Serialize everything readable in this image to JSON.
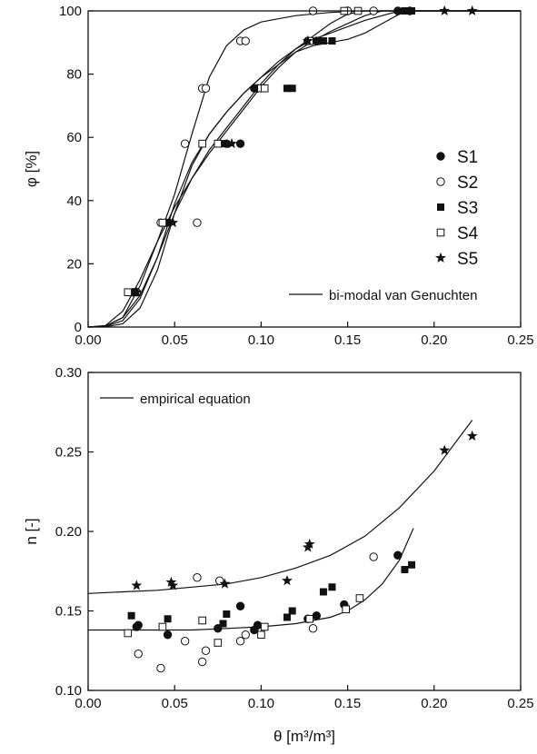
{
  "chart_data": [
    {
      "type": "scatter",
      "ylabel": "φ [%]",
      "xlim": [
        0,
        0.25
      ],
      "ylim": [
        0,
        100
      ],
      "xticks": [
        "0.00",
        "0.05",
        "0.10",
        "0.15",
        "0.20",
        "0.25"
      ],
      "yticks": [
        "0",
        "20",
        "40",
        "60",
        "80",
        "100"
      ],
      "legend_position": "right",
      "series": [
        {
          "name": "S1",
          "marker": "filled-circle",
          "points": [
            [
              0.026,
              11
            ],
            [
              0.045,
              33
            ],
            [
              0.08,
              58
            ],
            [
              0.088,
              58
            ],
            [
              0.096,
              75.5
            ],
            [
              0.098,
              75.5
            ],
            [
              0.127,
              90.5
            ],
            [
              0.132,
              90.5
            ],
            [
              0.15,
              100
            ],
            [
              0.179,
              100
            ],
            [
              0.186,
              100
            ]
          ]
        },
        {
          "name": "S2",
          "marker": "open-circle",
          "points": [
            [
              0.028,
              11
            ],
            [
              0.042,
              33
            ],
            [
              0.063,
              33
            ],
            [
              0.056,
              58
            ],
            [
              0.066,
              75.5
            ],
            [
              0.068,
              75.5
            ],
            [
              0.088,
              90.5
            ],
            [
              0.091,
              90.5
            ],
            [
              0.13,
              100
            ],
            [
              0.15,
              100
            ],
            [
              0.165,
              100
            ]
          ]
        },
        {
          "name": "S3",
          "marker": "filled-square",
          "points": [
            [
              0.027,
              11
            ],
            [
              0.046,
              33
            ],
            [
              0.079,
              58
            ],
            [
              0.115,
              75.5
            ],
            [
              0.118,
              75.5
            ],
            [
              0.136,
              90.5
            ],
            [
              0.141,
              90.5
            ],
            [
              0.148,
              100
            ],
            [
              0.183,
              100
            ],
            [
              0.187,
              100
            ]
          ]
        },
        {
          "name": "S4",
          "marker": "open-square",
          "points": [
            [
              0.023,
              11
            ],
            [
              0.043,
              33
            ],
            [
              0.066,
              58
            ],
            [
              0.075,
              58
            ],
            [
              0.1,
              75.5
            ],
            [
              0.102,
              75.5
            ],
            [
              0.128,
              90.5
            ],
            [
              0.148,
              100
            ],
            [
              0.156,
              100
            ]
          ]
        },
        {
          "name": "S5",
          "marker": "star",
          "points": [
            [
              0.028,
              11
            ],
            [
              0.049,
              33
            ],
            [
              0.083,
              58
            ],
            [
              0.127,
              90.5
            ],
            [
              0.206,
              100
            ],
            [
              0.222,
              100
            ]
          ]
        }
      ],
      "fit_legend": "bi-modal van Genuchten",
      "fit_curves": [
        {
          "points": [
            [
              0,
              0
            ],
            [
              0.01,
              0.3
            ],
            [
              0.02,
              3
            ],
            [
              0.03,
              13
            ],
            [
              0.04,
              27
            ],
            [
              0.05,
              42
            ],
            [
              0.06,
              61
            ],
            [
              0.07,
              79
            ],
            [
              0.08,
              89
            ],
            [
              0.09,
              94
            ],
            [
              0.1,
              96.5
            ],
            [
              0.12,
              98.5
            ],
            [
              0.14,
              99.5
            ],
            [
              0.16,
              100
            ],
            [
              0.25,
              100
            ]
          ]
        },
        {
          "points": [
            [
              0,
              0
            ],
            [
              0.01,
              0.2
            ],
            [
              0.02,
              2
            ],
            [
              0.03,
              9
            ],
            [
              0.04,
              22
            ],
            [
              0.05,
              39
            ],
            [
              0.06,
              52
            ],
            [
              0.07,
              61
            ],
            [
              0.08,
              68
            ],
            [
              0.09,
              74
            ],
            [
              0.1,
              79
            ],
            [
              0.11,
              84
            ],
            [
              0.12,
              88
            ],
            [
              0.13,
              92
            ],
            [
              0.14,
              96
            ],
            [
              0.15,
              99
            ],
            [
              0.16,
              100
            ],
            [
              0.25,
              100
            ]
          ]
        },
        {
          "points": [
            [
              0,
              0
            ],
            [
              0.01,
              0.3
            ],
            [
              0.02,
              3
            ],
            [
              0.03,
              10
            ],
            [
              0.04,
              22
            ],
            [
              0.05,
              36
            ],
            [
              0.06,
              47
            ],
            [
              0.07,
              56
            ],
            [
              0.08,
              63
            ],
            [
              0.09,
              70
            ],
            [
              0.1,
              77
            ],
            [
              0.11,
              83
            ],
            [
              0.12,
              88
            ],
            [
              0.13,
              91
            ],
            [
              0.14,
              93
            ],
            [
              0.15,
              95
            ],
            [
              0.16,
              97
            ],
            [
              0.17,
              98.5
            ],
            [
              0.18,
              100
            ],
            [
              0.25,
              100
            ]
          ]
        },
        {
          "points": [
            [
              0,
              0
            ],
            [
              0.01,
              0.5
            ],
            [
              0.02,
              5
            ],
            [
              0.03,
              15
            ],
            [
              0.04,
              27
            ],
            [
              0.05,
              38
            ],
            [
              0.06,
              47
            ],
            [
              0.07,
              55
            ],
            [
              0.08,
              62
            ],
            [
              0.09,
              69
            ],
            [
              0.1,
              76
            ],
            [
              0.11,
              82
            ],
            [
              0.12,
              87
            ],
            [
              0.13,
              90.5
            ],
            [
              0.14,
              93.5
            ],
            [
              0.15,
              96
            ],
            [
              0.16,
              98.5
            ],
            [
              0.17,
              100
            ],
            [
              0.25,
              100
            ]
          ]
        },
        {
          "points": [
            [
              0,
              0
            ],
            [
              0.01,
              0.1
            ],
            [
              0.02,
              1
            ],
            [
              0.03,
              6
            ],
            [
              0.04,
              18
            ],
            [
              0.05,
              36
            ],
            [
              0.06,
              51
            ],
            [
              0.07,
              61
            ],
            [
              0.08,
              68
            ],
            [
              0.09,
              74
            ],
            [
              0.1,
              79
            ],
            [
              0.11,
              83
            ],
            [
              0.12,
              87
            ],
            [
              0.13,
              89
            ],
            [
              0.14,
              90
            ],
            [
              0.15,
              91
            ],
            [
              0.16,
              93
            ],
            [
              0.17,
              96
            ],
            [
              0.18,
              99
            ],
            [
              0.19,
              100
            ],
            [
              0.25,
              100
            ]
          ]
        }
      ]
    },
    {
      "type": "scatter",
      "xlabel": "θ [m³/m³]",
      "ylabel": "n [-]",
      "xlim": [
        0,
        0.25
      ],
      "ylim": [
        0.1,
        0.3
      ],
      "xticks": [
        "0.00",
        "0.05",
        "0.10",
        "0.15",
        "0.20",
        "0.25"
      ],
      "yticks": [
        "0.10",
        "0.15",
        "0.20",
        "0.25",
        "0.30"
      ],
      "legend_position": "top-left",
      "fit_legend": "empirical equation",
      "series": [
        {
          "name": "S1",
          "marker": "filled-circle",
          "points": [
            [
              0.028,
              0.14
            ],
            [
              0.029,
              0.141
            ],
            [
              0.046,
              0.135
            ],
            [
              0.075,
              0.139
            ],
            [
              0.088,
              0.153
            ],
            [
              0.096,
              0.138
            ],
            [
              0.098,
              0.141
            ],
            [
              0.127,
              0.145
            ],
            [
              0.132,
              0.147
            ],
            [
              0.148,
              0.154
            ],
            [
              0.179,
              0.185
            ]
          ]
        },
        {
          "name": "S2",
          "marker": "open-circle",
          "points": [
            [
              0.029,
              0.123
            ],
            [
              0.042,
              0.114
            ],
            [
              0.056,
              0.131
            ],
            [
              0.063,
              0.171
            ],
            [
              0.066,
              0.118
            ],
            [
              0.068,
              0.125
            ],
            [
              0.076,
              0.169
            ],
            [
              0.088,
              0.131
            ],
            [
              0.091,
              0.135
            ],
            [
              0.13,
              0.139
            ],
            [
              0.165,
              0.184
            ]
          ]
        },
        {
          "name": "S3",
          "marker": "filled-square",
          "points": [
            [
              0.025,
              0.147
            ],
            [
              0.046,
              0.145
            ],
            [
              0.078,
              0.142
            ],
            [
              0.08,
              0.148
            ],
            [
              0.115,
              0.146
            ],
            [
              0.118,
              0.15
            ],
            [
              0.136,
              0.162
            ],
            [
              0.141,
              0.165
            ],
            [
              0.183,
              0.176
            ],
            [
              0.187,
              0.179
            ]
          ]
        },
        {
          "name": "S4",
          "marker": "open-square",
          "points": [
            [
              0.023,
              0.136
            ],
            [
              0.043,
              0.14
            ],
            [
              0.066,
              0.144
            ],
            [
              0.075,
              0.13
            ],
            [
              0.1,
              0.135
            ],
            [
              0.102,
              0.14
            ],
            [
              0.128,
              0.145
            ],
            [
              0.149,
              0.151
            ],
            [
              0.157,
              0.158
            ]
          ]
        },
        {
          "name": "S5",
          "marker": "star",
          "points": [
            [
              0.028,
              0.166
            ],
            [
              0.048,
              0.168
            ],
            [
              0.049,
              0.166
            ],
            [
              0.079,
              0.167
            ],
            [
              0.115,
              0.169
            ],
            [
              0.127,
              0.19
            ],
            [
              0.128,
              0.192
            ],
            [
              0.206,
              0.251
            ],
            [
              0.222,
              0.26
            ]
          ]
        }
      ],
      "fit_curves": [
        {
          "points": [
            [
              0,
              0.161
            ],
            [
              0.02,
              0.162
            ],
            [
              0.04,
              0.163
            ],
            [
              0.06,
              0.165
            ],
            [
              0.08,
              0.167
            ],
            [
              0.1,
              0.171
            ],
            [
              0.12,
              0.177
            ],
            [
              0.14,
              0.185
            ],
            [
              0.16,
              0.197
            ],
            [
              0.18,
              0.215
            ],
            [
              0.2,
              0.238
            ],
            [
              0.222,
              0.27
            ]
          ]
        },
        {
          "points": [
            [
              0,
              0.138
            ],
            [
              0.02,
              0.138
            ],
            [
              0.04,
              0.138
            ],
            [
              0.06,
              0.138
            ],
            [
              0.08,
              0.139
            ],
            [
              0.1,
              0.14
            ],
            [
              0.12,
              0.142
            ],
            [
              0.14,
              0.146
            ],
            [
              0.15,
              0.15
            ],
            [
              0.16,
              0.157
            ],
            [
              0.17,
              0.167
            ],
            [
              0.18,
              0.182
            ],
            [
              0.188,
              0.202
            ]
          ]
        }
      ]
    }
  ]
}
